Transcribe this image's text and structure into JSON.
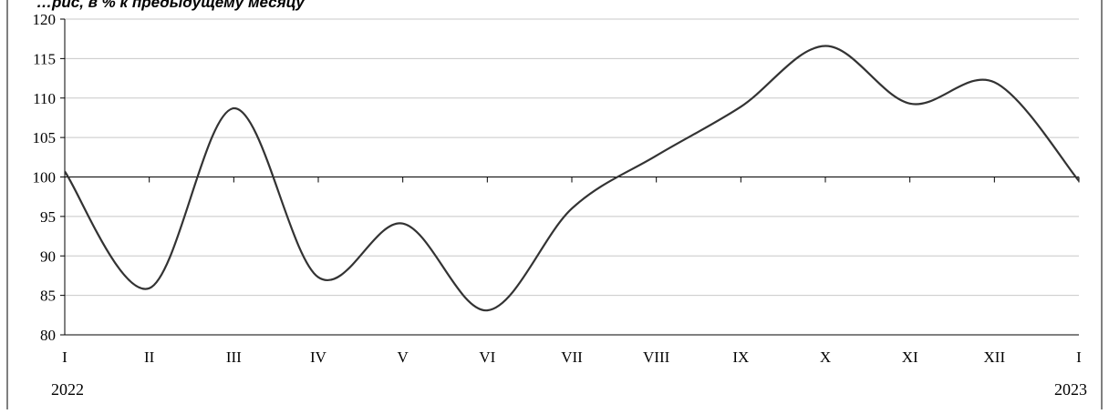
{
  "chart_data": {
    "type": "line",
    "title": "…рис, в % к предыдущему месяцу",
    "x": [
      "I",
      "II",
      "III",
      "IV",
      "V",
      "VI",
      "VII",
      "VIII",
      "IX",
      "X",
      "XI",
      "XII",
      "I"
    ],
    "year_labels": [
      "2022",
      "2023"
    ],
    "series": [
      {
        "values": [
          100.7,
          85.9,
          108.7,
          87.3,
          94.1,
          83.1,
          96.0,
          102.7,
          108.9,
          116.6,
          109.3,
          112.0,
          99.5
        ]
      }
    ],
    "ylim": [
      80,
      120
    ],
    "yticks": [
      80,
      85,
      90,
      95,
      100,
      105,
      110,
      115,
      120
    ],
    "reference_line": 100,
    "grid": true,
    "colors": {
      "line": "#333333",
      "grid": "#c8c8c8",
      "axis": "#000000"
    }
  }
}
